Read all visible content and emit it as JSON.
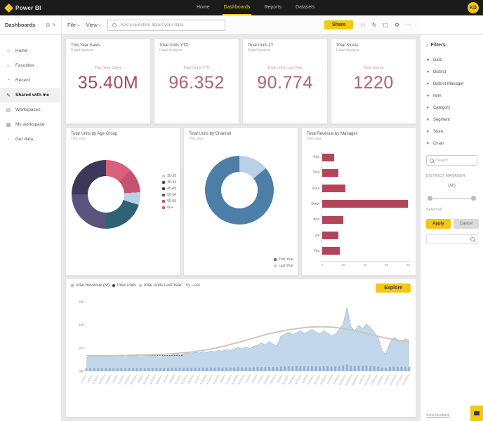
{
  "topbar": {
    "brand": "Power BI",
    "nav": [
      {
        "label": "Home",
        "active": false
      },
      {
        "label": "Dashboards",
        "active": true
      },
      {
        "label": "Reports",
        "active": false
      },
      {
        "label": "Datasets",
        "active": false
      }
    ],
    "avatar_initials": "KD"
  },
  "toolbar": {
    "sidebar_title": "Dashboards",
    "sidebar_icons": [
      {
        "name": "grid-icon",
        "glyph": "⊞"
      },
      {
        "name": "new-dashboard-icon",
        "glyph": "✎"
      }
    ],
    "file_menu": "File",
    "view_menu": "View",
    "ask_placeholder": "Ask a question about your data",
    "share_label": "Share",
    "icons": [
      {
        "name": "favorite-icon",
        "glyph": "☆"
      },
      {
        "name": "refresh-icon",
        "glyph": "↻"
      },
      {
        "name": "fullscreen-icon",
        "glyph": "▢"
      },
      {
        "name": "settings-icon",
        "glyph": "⚙"
      },
      {
        "name": "more-icon",
        "glyph": "⋯"
      }
    ]
  },
  "sidebar": {
    "items": [
      {
        "icon": "⌂",
        "name": "home",
        "label": "Home",
        "active": false
      },
      {
        "icon": "☆",
        "name": "favorites",
        "label": "Favorites",
        "active": false
      },
      {
        "icon": "◔",
        "name": "recent",
        "label": "Recent",
        "active": false
      },
      {
        "icon": "✎",
        "name": "shared-with-me",
        "label": "Shared with me",
        "active": true
      },
      {
        "icon": "▤",
        "name": "workspaces",
        "label": "Workspaces",
        "active": false
      },
      {
        "icon": "▦",
        "name": "my-workspace",
        "label": "My workspace",
        "active": false
      },
      {
        "icon": "↓",
        "name": "get-data",
        "label": "Get data",
        "active": false
      }
    ]
  },
  "cards": [
    {
      "title": "This Year Sales",
      "subtitle": "Retail Analysis",
      "caption": "This Year Sales",
      "value": "35.40M",
      "color": "#a8485e"
    },
    {
      "title": "Total Units YTD",
      "subtitle": "Retail Analysis",
      "caption": "Total Units YTD",
      "value": "96.352",
      "color": "#b3606f"
    },
    {
      "title": "Total Units LY",
      "subtitle": "Retail Analysis",
      "caption": "Total Units Last Year",
      "value": "90.774",
      "color": "#b3606f"
    },
    {
      "title": "Total Stores",
      "subtitle": "Retail Analysis",
      "caption": "Total Stores",
      "value": "1220",
      "color": "#b3606f"
    }
  ],
  "chart_data": [
    {
      "type": "pie",
      "title": "Total Units by Age Group",
      "subtitle": "This year",
      "segments": [
        {
          "color": "#d9607a",
          "label": "60+",
          "value": 0.125
        },
        {
          "color": "#c5536e",
          "label": "55-59",
          "value": 0.115
        },
        {
          "color": "#b9cfe2",
          "label": "35-39",
          "value": 0.06
        },
        {
          "color": "#2f6272",
          "label": "40-44",
          "value": 0.2
        },
        {
          "color": "#5a537d",
          "label": "50-54",
          "value": 0.25
        },
        {
          "color": "#3d3858",
          "label": "45-49",
          "value": 0.25
        }
      ],
      "legend": [
        {
          "color": "#b9cfe2",
          "label": "35-39"
        },
        {
          "color": "#2f6272",
          "label": "40-44"
        },
        {
          "color": "#3d3858",
          "label": "45-49"
        },
        {
          "color": "#5a537d",
          "label": "50-54"
        },
        {
          "color": "#c5536e",
          "label": "55-59"
        },
        {
          "color": "#d9607a",
          "label": "60+"
        }
      ],
      "legend_position": "right"
    },
    {
      "type": "pie",
      "title": "Total Units by Channel",
      "subtitle": "This year",
      "segments": [
        {
          "color": "#b9d0e6",
          "label": "Last Year",
          "value": 0.14
        },
        {
          "color": "#4d7ea8",
          "label": "This Year",
          "value": 0.86
        }
      ],
      "legend": [
        {
          "color": "#4d7ea8",
          "label": "This Year"
        },
        {
          "color": "#b9d0e6",
          "label": "Last Year"
        }
      ],
      "legend_position": "bottom-right"
    },
    {
      "type": "bar",
      "title": "Total Revenue by Manager",
      "subtitle": "This year",
      "bar_color": "#b34459",
      "categories": [
        "Kim",
        "Tina",
        "Paul",
        "Drew",
        "Ana",
        "Val",
        "Raj"
      ],
      "values": [
        11,
        15,
        21,
        78,
        19,
        15,
        16
      ],
      "xlim": [
        0,
        80
      ],
      "x_ticks": [
        "0",
        "20",
        "40",
        "60",
        "80"
      ]
    },
    {
      "type": "area",
      "title_parts": [
        {
          "dot": "#9cbbd9",
          "text": "Total Revenue (M)"
        },
        {
          "dot": "#3d3858",
          "text": "Total Units"
        },
        {
          "dot": "#cbc5b8",
          "text": "Total Units Last Year"
        }
      ],
      "title_suffix": "by Date",
      "explore_label": "Explore",
      "y_ticks": [
        "0M",
        "2M",
        "4M",
        "6M"
      ],
      "x_start": "1/1/2014",
      "x_interval_days": 7,
      "x_tick_count": 52,
      "area_color": "#c3d7ea",
      "area_edge_color": "#9fbdda",
      "base_bar_color": "#86a9cc",
      "trend_color": "#cbc5b8",
      "area": [
        0.2,
        0.22,
        0.21,
        0.23,
        0.21,
        0.22,
        0.22,
        0.21,
        0.23,
        0.22,
        0.21,
        0.22,
        0.23,
        0.22,
        0.21,
        0.22,
        0.22,
        0.23,
        0.22,
        0.21,
        0.22,
        0.23,
        0.24,
        0.26,
        0.24,
        0.25,
        0.27,
        0.26,
        0.28,
        0.27,
        0.29,
        0.28,
        0.3,
        0.29,
        0.31,
        0.3,
        0.32,
        0.31,
        0.33,
        0.35,
        0.33,
        0.36,
        0.34,
        0.37,
        0.38,
        0.42,
        0.39,
        0.44,
        0.4,
        0.38,
        0.52,
        0.55,
        0.58,
        0.54,
        0.57,
        0.6,
        0.56,
        0.59,
        0.62,
        0.58,
        0.55,
        0.6,
        0.57,
        0.52,
        0.55,
        0.62,
        0.7,
        0.95,
        0.66,
        0.6,
        0.68,
        0.63,
        0.7,
        0.65,
        0.58,
        0.5,
        0.3,
        0.26,
        0.42,
        0.5,
        0.47,
        0.45,
        0.48,
        0.46
      ],
      "trend": [
        [
          0,
          0.23
        ],
        [
          0.08,
          0.23
        ],
        [
          0.16,
          0.24
        ],
        [
          0.24,
          0.25
        ],
        [
          0.32,
          0.28
        ],
        [
          0.4,
          0.34
        ],
        [
          0.48,
          0.44
        ],
        [
          0.56,
          0.55
        ],
        [
          0.62,
          0.61
        ],
        [
          0.68,
          0.65
        ],
        [
          0.72,
          0.66
        ],
        [
          0.76,
          0.655
        ],
        [
          0.8,
          0.63
        ],
        [
          0.85,
          0.58
        ],
        [
          0.9,
          0.52
        ],
        [
          0.95,
          0.47
        ],
        [
          1,
          0.43
        ]
      ]
    }
  ],
  "rightpanel": {
    "title": "Filters",
    "fields": [
      {
        "label": "Date"
      },
      {
        "label": "District"
      },
      {
        "label": "District Manager"
      },
      {
        "label": "Item"
      },
      {
        "label": "Category"
      },
      {
        "label": "Segment"
      },
      {
        "label": "Store"
      },
      {
        "label": "Chain"
      }
    ],
    "search_placeholder": "Search",
    "section_title": "DISTRICT MANAGER",
    "section_value": "(All)",
    "select_all_label": "Select all",
    "apply_label": "Apply",
    "cancel_label": "Cancel",
    "footer_link": "Send feedback"
  }
}
